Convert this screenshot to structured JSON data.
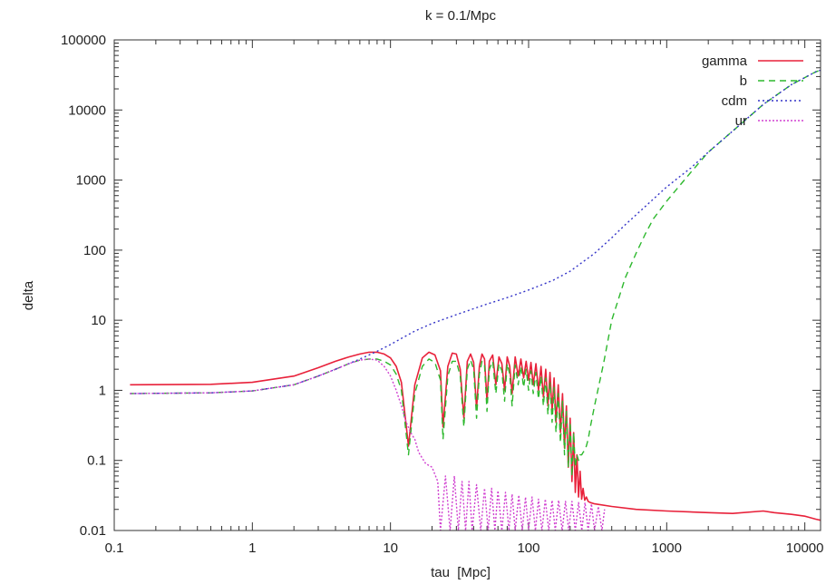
{
  "chart_data": {
    "type": "line",
    "title": "k = 0.1/Mpc",
    "xlabel": "tau  [Mpc]",
    "ylabel": "delta",
    "xscale": "log",
    "yscale": "log",
    "xlim": [
      0.1,
      13000
    ],
    "ylim": [
      0.01,
      100000
    ],
    "grid": false,
    "legend_position": "top-right",
    "x_ticks": [
      {
        "value": 0.1,
        "label": "0.1"
      },
      {
        "value": 1,
        "label": "1"
      },
      {
        "value": 10,
        "label": "10"
      },
      {
        "value": 100,
        "label": "100"
      },
      {
        "value": 1000,
        "label": "1000"
      },
      {
        "value": 10000,
        "label": "10000"
      }
    ],
    "y_ticks": [
      {
        "value": 0.01,
        "label": "0.01"
      },
      {
        "value": 0.1,
        "label": "0.1"
      },
      {
        "value": 1,
        "label": "1"
      },
      {
        "value": 10,
        "label": "10"
      },
      {
        "value": 100,
        "label": "100"
      },
      {
        "value": 1000,
        "label": "1000"
      },
      {
        "value": 10000,
        "label": "10000"
      },
      {
        "value": 100000,
        "label": "100000"
      }
    ],
    "series": [
      {
        "name": "gamma",
        "color": "#e8213a",
        "dash": "solid",
        "x": [
          0.13,
          0.5,
          1,
          2,
          3,
          4,
          5,
          6,
          7,
          8,
          9,
          10,
          11,
          12,
          13.5,
          15,
          17,
          19,
          21,
          23,
          24,
          26,
          28,
          30,
          32,
          34,
          36,
          38,
          40,
          42,
          44,
          46,
          48,
          50,
          52,
          55,
          58,
          61,
          64,
          67,
          70,
          73,
          76,
          80,
          84,
          88,
          92,
          96,
          100,
          104,
          108,
          113,
          118,
          123,
          128,
          133,
          138,
          143,
          148,
          153,
          158,
          164,
          170,
          176,
          182,
          188,
          194,
          200,
          206,
          212,
          218,
          224,
          230,
          236,
          242,
          248,
          255,
          262,
          270,
          280,
          300,
          400,
          600,
          1000,
          2000,
          3000,
          5000,
          6000,
          8000,
          10000,
          12000,
          13000
        ],
        "y": [
          1.2,
          1.22,
          1.3,
          1.6,
          2.1,
          2.6,
          3.0,
          3.3,
          3.5,
          3.5,
          3.3,
          2.9,
          2.2,
          1.3,
          0.16,
          1.2,
          2.9,
          3.5,
          3.2,
          1.9,
          0.3,
          2.2,
          3.4,
          3.3,
          2.0,
          0.4,
          2.6,
          3.3,
          2.5,
          0.55,
          2.2,
          3.3,
          2.8,
          0.7,
          2.6,
          3.2,
          1.2,
          3.0,
          2.4,
          1.0,
          3.0,
          2.2,
          0.9,
          3.0,
          1.6,
          2.8,
          1.5,
          2.6,
          1.4,
          2.5,
          1.2,
          2.4,
          1.0,
          2.2,
          0.8,
          2.0,
          0.6,
          1.8,
          0.5,
          1.5,
          0.35,
          1.2,
          0.25,
          0.9,
          0.15,
          0.6,
          0.08,
          0.4,
          0.05,
          0.25,
          0.035,
          0.12,
          0.03,
          0.07,
          0.028,
          0.04,
          0.027,
          0.03,
          0.026,
          0.025,
          0.024,
          0.022,
          0.02,
          0.019,
          0.018,
          0.0175,
          0.019,
          0.018,
          0.017,
          0.016,
          0.0145,
          0.014
        ]
      },
      {
        "name": "b",
        "color": "#2db82d",
        "dash": "7 5",
        "x": [
          0.13,
          0.5,
          1,
          2,
          3,
          4,
          5,
          6,
          7,
          8,
          9,
          10,
          11,
          12,
          13.5,
          15,
          17,
          19,
          21,
          23,
          24,
          26,
          28,
          30,
          32,
          34,
          36,
          38,
          40,
          42,
          44,
          46,
          48,
          50,
          52,
          55,
          58,
          61,
          64,
          67,
          70,
          73,
          76,
          80,
          84,
          88,
          92,
          96,
          100,
          104,
          108,
          113,
          118,
          123,
          128,
          133,
          138,
          143,
          148,
          153,
          158,
          164,
          170,
          176,
          182,
          188,
          194,
          200,
          206,
          212,
          218,
          224,
          230,
          236,
          242,
          248,
          255,
          262,
          270,
          280,
          300,
          350,
          400,
          500,
          600,
          700,
          800,
          1000,
          1500,
          2000,
          3000,
          5000,
          8000,
          12000,
          13000
        ],
        "y": [
          0.9,
          0.92,
          0.98,
          1.2,
          1.6,
          2.0,
          2.4,
          2.7,
          2.8,
          2.8,
          2.6,
          2.3,
          1.7,
          1.0,
          0.12,
          0.9,
          2.2,
          2.8,
          2.5,
          1.4,
          0.2,
          1.6,
          2.6,
          2.6,
          1.6,
          0.3,
          2.0,
          2.7,
          2.0,
          0.4,
          1.7,
          2.6,
          2.3,
          0.5,
          2.0,
          2.6,
          0.9,
          2.4,
          1.9,
          0.7,
          2.4,
          1.7,
          0.6,
          2.3,
          1.2,
          2.2,
          1.1,
          2.0,
          1.0,
          1.9,
          0.9,
          1.8,
          0.75,
          1.6,
          0.6,
          1.5,
          0.45,
          1.3,
          0.35,
          1.1,
          0.25,
          0.9,
          0.18,
          0.7,
          0.12,
          0.5,
          0.08,
          0.35,
          0.06,
          0.25,
          0.08,
          0.12,
          0.1,
          0.12,
          0.12,
          0.13,
          0.14,
          0.16,
          0.2,
          0.3,
          0.6,
          2.5,
          10,
          40,
          90,
          170,
          280,
          500,
          1300,
          2500,
          5000,
          12000,
          23000,
          35000,
          37000
        ]
      },
      {
        "name": "cdm",
        "color": "#3434c8",
        "dash": "2 3",
        "x": [
          0.13,
          0.5,
          1,
          2,
          3,
          4,
          5,
          6,
          7,
          8,
          10,
          12,
          15,
          20,
          30,
          50,
          70,
          100,
          150,
          200,
          300,
          400,
          500,
          700,
          1000,
          1500,
          2000,
          3000,
          5000,
          8000,
          12000,
          13000
        ],
        "y": [
          0.9,
          0.92,
          0.98,
          1.2,
          1.6,
          2.0,
          2.4,
          2.8,
          3.2,
          3.6,
          4.5,
          5.5,
          7.0,
          9.0,
          12,
          17,
          21,
          27,
          37,
          50,
          90,
          150,
          230,
          420,
          800,
          1500,
          2500,
          5000,
          12000,
          23000,
          35000,
          37000
        ]
      },
      {
        "name": "ur",
        "color": "#d040d0",
        "dash": "2 2",
        "x": [
          0.13,
          0.5,
          1,
          2,
          3,
          4,
          5,
          6,
          7,
          8,
          9,
          10,
          11,
          12,
          13,
          14,
          15,
          16,
          18,
          20,
          22,
          23,
          25,
          27,
          29,
          31,
          33,
          35,
          37,
          39,
          42,
          45,
          48,
          51,
          54,
          57,
          60,
          64,
          68,
          72,
          76,
          80,
          85,
          90,
          95,
          100,
          106,
          112,
          118,
          125,
          132,
          140,
          148,
          156,
          165,
          175,
          185,
          195,
          206,
          218,
          230,
          243,
          256,
          270,
          285,
          300,
          320,
          340,
          355
        ],
        "y": [
          0.9,
          0.92,
          0.98,
          1.2,
          1.6,
          2.0,
          2.4,
          2.7,
          2.8,
          2.7,
          2.2,
          1.6,
          1.0,
          0.6,
          0.35,
          0.25,
          0.2,
          0.13,
          0.09,
          0.08,
          0.05,
          0.01,
          0.06,
          0.01,
          0.06,
          0.01,
          0.05,
          0.01,
          0.05,
          0.01,
          0.045,
          0.01,
          0.04,
          0.01,
          0.04,
          0.01,
          0.037,
          0.01,
          0.035,
          0.01,
          0.033,
          0.01,
          0.032,
          0.01,
          0.03,
          0.01,
          0.03,
          0.01,
          0.028,
          0.01,
          0.028,
          0.01,
          0.027,
          0.01,
          0.027,
          0.01,
          0.026,
          0.01,
          0.026,
          0.01,
          0.025,
          0.01,
          0.025,
          0.01,
          0.024,
          0.01,
          0.022,
          0.01,
          0.02
        ]
      }
    ]
  }
}
